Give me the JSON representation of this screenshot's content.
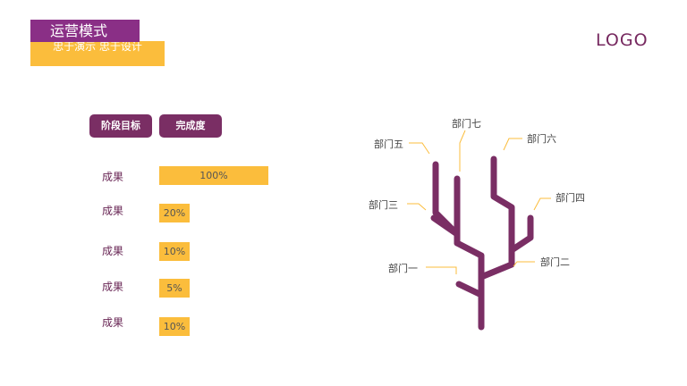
{
  "header": {
    "title": "运营模式",
    "subtitle": "忠于演示    忠于设计",
    "logo": "LOGO"
  },
  "table": {
    "stage_header": "阶段目标",
    "done_header": "完成度",
    "rows": [
      {
        "label": "成果",
        "value": "100%",
        "fraction": 1.0
      },
      {
        "label": "成果",
        "value": "20%",
        "fraction": 0.2
      },
      {
        "label": "成果",
        "value": "10%",
        "fraction": 0.1
      },
      {
        "label": "成果",
        "value": "5%",
        "fraction": 0.05
      },
      {
        "label": "成果",
        "value": "10%",
        "fraction": 0.1
      }
    ]
  },
  "tree": {
    "departments": [
      "部门一",
      "部门二",
      "部门三",
      "部门四",
      "部门五",
      "部门六",
      "部门七"
    ]
  },
  "colors": {
    "purple": "#7a2e64",
    "title_purple": "#8a2f86",
    "yellow": "#fbbd3c"
  }
}
